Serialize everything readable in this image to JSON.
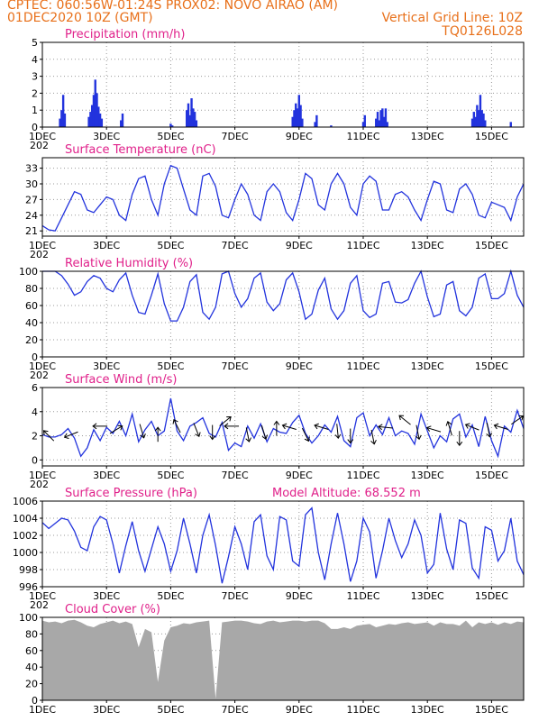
{
  "header": {
    "line1_left": "CPTEC:   060:56W-01:24S   PROX02: NOVO AIRAO (AM)",
    "line2_left": "01DEC2020 10Z (GMT)",
    "line2_right": "Vertical Grid Line: 10Z",
    "line3_right": "TQ0126L028",
    "model_altitude": "Model Altitude: 68.552 m"
  },
  "colors": {
    "header": "#e8701a",
    "title": "#e0208a",
    "line": "#2233dd",
    "cloud": "#a8a8a8"
  },
  "x_axis": {
    "range": [
      1,
      16
    ],
    "labels": [
      "1DEC",
      "3DEC",
      "5DEC",
      "7DEC",
      "9DEC",
      "11DEC",
      "13DEC",
      "15DEC"
    ],
    "label_days": [
      1,
      3,
      5,
      7,
      9,
      11,
      13,
      15
    ],
    "year_stub": "202"
  },
  "chart_data": [
    {
      "type": "bar",
      "title": "Precipitation (mm/h)",
      "ylim": [
        0,
        5
      ],
      "yticks": [
        0,
        1,
        2,
        3,
        4,
        5
      ],
      "x": [
        1.55,
        1.6,
        1.65,
        1.7,
        2.45,
        2.5,
        2.55,
        2.6,
        2.65,
        2.7,
        2.75,
        2.8,
        2.85,
        3.45,
        3.5,
        5.0,
        5.05,
        5.5,
        5.55,
        5.6,
        5.65,
        5.7,
        5.75,
        5.8,
        8.8,
        8.85,
        8.9,
        8.95,
        9.0,
        9.05,
        9.1,
        9.5,
        9.55,
        10.0,
        11.0,
        11.05,
        11.4,
        11.45,
        11.5,
        11.55,
        11.6,
        11.65,
        11.7,
        11.75,
        14.4,
        14.45,
        14.5,
        14.55,
        14.6,
        14.65,
        14.7,
        14.75,
        14.8,
        15.6
      ],
      "values": [
        0.5,
        1.0,
        1.9,
        0.8,
        0.6,
        0.9,
        1.3,
        1.9,
        2.8,
        2.0,
        1.2,
        0.8,
        0.5,
        0.4,
        0.8,
        0.2,
        0.1,
        1.0,
        1.4,
        0.7,
        1.7,
        1.1,
        0.9,
        0.4,
        0.6,
        1.0,
        1.4,
        1.1,
        1.9,
        1.3,
        0.5,
        0.3,
        0.7,
        0.1,
        0.3,
        0.7,
        0.5,
        0.9,
        0.4,
        1.0,
        1.1,
        0.6,
        1.1,
        0.3,
        0.5,
        0.9,
        0.6,
        1.3,
        1.0,
        1.9,
        1.0,
        0.8,
        0.4,
        0.3
      ]
    },
    {
      "type": "line",
      "title": "Surface Temperature (nC)",
      "ylim": [
        20,
        35
      ],
      "yticks": [
        21,
        24,
        27,
        30,
        33
      ],
      "x": [
        1.0,
        1.2,
        1.4,
        1.6,
        1.8,
        2.0,
        2.2,
        2.4,
        2.6,
        2.8,
        3.0,
        3.2,
        3.4,
        3.6,
        3.8,
        4.0,
        4.2,
        4.4,
        4.6,
        4.8,
        5.0,
        5.2,
        5.4,
        5.6,
        5.8,
        6.0,
        6.2,
        6.4,
        6.6,
        6.8,
        7.0,
        7.2,
        7.4,
        7.6,
        7.8,
        8.0,
        8.2,
        8.4,
        8.6,
        8.8,
        9.0,
        9.2,
        9.4,
        9.6,
        9.8,
        10.0,
        10.2,
        10.4,
        10.6,
        10.8,
        11.0,
        11.2,
        11.4,
        11.6,
        11.8,
        12.0,
        12.2,
        12.4,
        12.6,
        12.8,
        13.0,
        13.2,
        13.4,
        13.6,
        13.8,
        14.0,
        14.2,
        14.4,
        14.6,
        14.8,
        15.0,
        15.2,
        15.4,
        15.6,
        15.8,
        16.0
      ],
      "values": [
        22.0,
        21.2,
        21.0,
        23.5,
        26.0,
        28.5,
        28.0,
        25.0,
        24.5,
        26.0,
        27.5,
        27.0,
        24.0,
        23.0,
        28.0,
        31.0,
        31.5,
        27.0,
        24.0,
        30.0,
        33.5,
        33.0,
        29.0,
        25.0,
        24.0,
        31.5,
        32.0,
        29.5,
        24.0,
        23.5,
        27.0,
        30.0,
        28.0,
        24.0,
        23.0,
        28.5,
        30.0,
        28.5,
        24.5,
        23.0,
        27.0,
        32.0,
        31.0,
        26.0,
        25.0,
        30.0,
        32.0,
        30.0,
        25.5,
        24.0,
        30.0,
        31.5,
        30.5,
        25.0,
        25.0,
        28.0,
        28.5,
        27.5,
        25.0,
        23.0,
        27.0,
        30.5,
        30.0,
        25.0,
        24.5,
        29.0,
        30.0,
        28.0,
        24.0,
        23.5,
        26.5,
        26.0,
        25.5,
        23.0,
        27.5,
        30.0
      ]
    },
    {
      "type": "line",
      "title": "Relative Humidity (%)",
      "ylim": [
        0,
        100
      ],
      "yticks": [
        0,
        20,
        40,
        60,
        80,
        100
      ],
      "x": [
        1.0,
        1.2,
        1.4,
        1.6,
        1.8,
        2.0,
        2.2,
        2.4,
        2.6,
        2.8,
        3.0,
        3.2,
        3.4,
        3.6,
        3.8,
        4.0,
        4.2,
        4.4,
        4.6,
        4.8,
        5.0,
        5.2,
        5.4,
        5.6,
        5.8,
        6.0,
        6.2,
        6.4,
        6.6,
        6.8,
        7.0,
        7.2,
        7.4,
        7.6,
        7.8,
        8.0,
        8.2,
        8.4,
        8.6,
        8.8,
        9.0,
        9.2,
        9.4,
        9.6,
        9.8,
        10.0,
        10.2,
        10.4,
        10.6,
        10.8,
        11.0,
        11.2,
        11.4,
        11.6,
        11.8,
        12.0,
        12.2,
        12.4,
        12.6,
        12.8,
        13.0,
        13.2,
        13.4,
        13.6,
        13.8,
        14.0,
        14.2,
        14.4,
        14.6,
        14.8,
        15.0,
        15.2,
        15.4,
        15.6,
        15.8,
        16.0
      ],
      "values": [
        100,
        100,
        100,
        95,
        85,
        72,
        76,
        88,
        95,
        92,
        80,
        76,
        90,
        98,
        72,
        52,
        50,
        72,
        97,
        62,
        42,
        42,
        58,
        88,
        96,
        52,
        44,
        58,
        97,
        100,
        74,
        58,
        68,
        92,
        98,
        64,
        54,
        62,
        90,
        98,
        76,
        44,
        50,
        78,
        92,
        56,
        44,
        54,
        86,
        95,
        54,
        46,
        50,
        86,
        88,
        64,
        63,
        67,
        86,
        100,
        70,
        47,
        50,
        84,
        88,
        54,
        48,
        58,
        92,
        97,
        68,
        68,
        74,
        100,
        72,
        58
      ]
    },
    {
      "type": "line",
      "title": "Surface Wind (m/s)",
      "ylim": [
        -0.5,
        6
      ],
      "yticks": [
        0,
        2,
        4,
        6
      ],
      "x": [
        1.0,
        1.2,
        1.4,
        1.6,
        1.8,
        2.0,
        2.2,
        2.4,
        2.6,
        2.8,
        3.0,
        3.2,
        3.4,
        3.6,
        3.8,
        4.0,
        4.2,
        4.4,
        4.6,
        4.8,
        5.0,
        5.2,
        5.4,
        5.6,
        5.8,
        6.0,
        6.2,
        6.4,
        6.6,
        6.8,
        7.0,
        7.2,
        7.4,
        7.6,
        7.8,
        8.0,
        8.2,
        8.4,
        8.6,
        8.8,
        9.0,
        9.2,
        9.4,
        9.6,
        9.8,
        10.0,
        10.2,
        10.4,
        10.6,
        10.8,
        11.0,
        11.2,
        11.4,
        11.6,
        11.8,
        12.0,
        12.2,
        12.4,
        12.6,
        12.8,
        13.0,
        13.2,
        13.4,
        13.6,
        13.8,
        14.0,
        14.2,
        14.4,
        14.6,
        14.8,
        15.0,
        15.2,
        15.4,
        15.6,
        15.8,
        16.0
      ],
      "values": [
        2.1,
        1.9,
        1.9,
        2.1,
        2.6,
        1.8,
        0.3,
        1.0,
        2.5,
        1.6,
        2.7,
        2.2,
        3.2,
        2.0,
        3.8,
        1.5,
        2.5,
        3.2,
        2.0,
        2.4,
        5.1,
        2.4,
        1.6,
        2.8,
        3.1,
        3.5,
        2.2,
        1.9,
        3.1,
        0.8,
        1.4,
        1.1,
        2.8,
        1.8,
        3.0,
        1.5,
        2.6,
        2.3,
        2.2,
        3.1,
        3.7,
        2.2,
        1.4,
        2.0,
        2.9,
        2.3,
        3.6,
        1.6,
        1.1,
        3.5,
        3.9,
        2.0,
        2.9,
        2.1,
        3.5,
        2.0,
        2.4,
        2.2,
        1.3,
        3.8,
        2.4,
        1.0,
        2.0,
        1.5,
        3.4,
        3.8,
        1.9,
        2.9,
        1.1,
        3.6,
        1.6,
        0.3,
        2.8,
        2.3,
        4.1,
        2.6
      ],
      "arrows": [
        {
          "x": 1.2,
          "y": 2.0,
          "dx": -1,
          "dy": 1
        },
        {
          "x": 1.9,
          "y": 2.1,
          "dx": -1,
          "dy": -0.4
        },
        {
          "x": 2.8,
          "y": 2.8,
          "dx": -1,
          "dy": 0
        },
        {
          "x": 3.3,
          "y": 2.5,
          "dx": 1,
          "dy": 0.6
        },
        {
          "x": 4.1,
          "y": 2.4,
          "dx": 0.3,
          "dy": -1
        },
        {
          "x": 4.6,
          "y": 2.1,
          "dx": 0,
          "dy": 1
        },
        {
          "x": 5.2,
          "y": 2.8,
          "dx": -0.5,
          "dy": 1
        },
        {
          "x": 5.8,
          "y": 2.5,
          "dx": 0.4,
          "dy": -1
        },
        {
          "x": 6.3,
          "y": 2.3,
          "dx": 0,
          "dy": -1
        },
        {
          "x": 6.7,
          "y": 3.2,
          "dx": 1,
          "dy": 0.8
        },
        {
          "x": 6.9,
          "y": 2.8,
          "dx": -1,
          "dy": 0
        },
        {
          "x": 7.4,
          "y": 2.1,
          "dx": 0.2,
          "dy": -1
        },
        {
          "x": 7.9,
          "y": 2.3,
          "dx": 0.3,
          "dy": -1
        },
        {
          "x": 8.3,
          "y": 2.6,
          "dx": 0,
          "dy": 1
        },
        {
          "x": 8.7,
          "y": 2.7,
          "dx": -1,
          "dy": 0.3
        },
        {
          "x": 9.2,
          "y": 2.1,
          "dx": 0.5,
          "dy": -1
        },
        {
          "x": 9.7,
          "y": 2.7,
          "dx": -1,
          "dy": 0.3
        },
        {
          "x": 10.2,
          "y": 2.4,
          "dx": 0.1,
          "dy": -1
        },
        {
          "x": 10.6,
          "y": 2.0,
          "dx": 0,
          "dy": -1
        },
        {
          "x": 11.3,
          "y": 1.9,
          "dx": 0.2,
          "dy": -1
        },
        {
          "x": 11.7,
          "y": 2.7,
          "dx": -1,
          "dy": 0.1
        },
        {
          "x": 12.3,
          "y": 3.3,
          "dx": -1,
          "dy": 0.8
        },
        {
          "x": 12.7,
          "y": 2.3,
          "dx": 0.2,
          "dy": -1
        },
        {
          "x": 13.2,
          "y": 2.5,
          "dx": -1,
          "dy": 0.3
        },
        {
          "x": 13.7,
          "y": 2.6,
          "dx": -0.3,
          "dy": 1
        },
        {
          "x": 14.0,
          "y": 1.8,
          "dx": 0,
          "dy": -1
        },
        {
          "x": 14.4,
          "y": 2.7,
          "dx": -1,
          "dy": 0.4
        },
        {
          "x": 14.9,
          "y": 2.5,
          "dx": 0.2,
          "dy": -1
        },
        {
          "x": 15.3,
          "y": 2.7,
          "dx": -1,
          "dy": 0.3
        },
        {
          "x": 15.8,
          "y": 3.3,
          "dx": 1,
          "dy": 0.7
        }
      ]
    },
    {
      "type": "line",
      "title": "Surface Pressure (hPa)",
      "ylim": [
        996,
        1006
      ],
      "yticks": [
        996,
        998,
        1000,
        1002,
        1004,
        1006
      ],
      "x": [
        1.0,
        1.2,
        1.4,
        1.6,
        1.8,
        2.0,
        2.2,
        2.4,
        2.6,
        2.8,
        3.0,
        3.2,
        3.4,
        3.6,
        3.8,
        4.0,
        4.2,
        4.4,
        4.6,
        4.8,
        5.0,
        5.2,
        5.4,
        5.6,
        5.8,
        6.0,
        6.2,
        6.4,
        6.6,
        6.8,
        7.0,
        7.2,
        7.4,
        7.6,
        7.8,
        8.0,
        8.2,
        8.4,
        8.6,
        8.8,
        9.0,
        9.2,
        9.4,
        9.6,
        9.8,
        10.0,
        10.2,
        10.4,
        10.6,
        10.8,
        11.0,
        11.2,
        11.4,
        11.6,
        11.8,
        12.0,
        12.2,
        12.4,
        12.6,
        12.8,
        13.0,
        13.2,
        13.4,
        13.6,
        13.8,
        14.0,
        14.2,
        14.4,
        14.6,
        14.8,
        15.0,
        15.2,
        15.4,
        15.6,
        15.8,
        16.0
      ],
      "values": [
        1003.5,
        1002.8,
        1003.4,
        1004.0,
        1003.8,
        1002.5,
        1000.6,
        1000.2,
        1003.0,
        1004.2,
        1003.8,
        1001.0,
        997.6,
        1000.8,
        1003.6,
        1000.2,
        997.8,
        1000.4,
        1003.0,
        1001.0,
        997.8,
        1000.2,
        1004.0,
        1001.0,
        997.6,
        1002.0,
        1004.4,
        1000.8,
        996.4,
        999.5,
        1003.0,
        1001.0,
        998.0,
        1003.6,
        1004.4,
        999.6,
        998.0,
        1004.2,
        1003.8,
        999.0,
        998.4,
        1004.4,
        1005.2,
        1000.0,
        996.8,
        1001.0,
        1004.6,
        1001.0,
        996.6,
        999.0,
        1004.0,
        1002.4,
        997.0,
        1000.2,
        1004.0,
        1001.4,
        999.4,
        1001.0,
        1003.8,
        1002.0,
        997.6,
        998.6,
        1004.6,
        1000.4,
        998.0,
        1003.8,
        1003.4,
        998.2,
        997.0,
        1003.0,
        1002.6,
        999.0,
        1000.2,
        1004.0,
        999.0,
        997.4
      ]
    },
    {
      "type": "area",
      "title": "Cloud Cover (%)",
      "ylim": [
        0,
        100
      ],
      "yticks": [
        0,
        20,
        40,
        60,
        80,
        100
      ],
      "x": [
        1.0,
        1.2,
        1.4,
        1.6,
        1.8,
        2.0,
        2.2,
        2.4,
        2.6,
        2.8,
        3.0,
        3.2,
        3.4,
        3.6,
        3.8,
        4.0,
        4.2,
        4.4,
        4.6,
        4.8,
        5.0,
        5.2,
        5.4,
        5.6,
        5.8,
        6.0,
        6.2,
        6.4,
        6.6,
        6.8,
        7.0,
        7.2,
        7.4,
        7.6,
        7.8,
        8.0,
        8.2,
        8.4,
        8.6,
        8.8,
        9.0,
        9.2,
        9.4,
        9.6,
        9.8,
        10.0,
        10.2,
        10.4,
        10.6,
        10.8,
        11.0,
        11.2,
        11.4,
        11.6,
        11.8,
        12.0,
        12.2,
        12.4,
        12.6,
        12.8,
        13.0,
        13.2,
        13.4,
        13.6,
        13.8,
        14.0,
        14.2,
        14.4,
        14.6,
        14.8,
        15.0,
        15.2,
        15.4,
        15.6,
        15.8,
        16.0
      ],
      "values": [
        96,
        94,
        95,
        93,
        96,
        97,
        94,
        90,
        88,
        92,
        94,
        96,
        93,
        95,
        92,
        64,
        86,
        82,
        22,
        72,
        88,
        90,
        93,
        92,
        94,
        95,
        96,
        2,
        94,
        95,
        96,
        96,
        95,
        93,
        92,
        95,
        96,
        94,
        95,
        96,
        96,
        95,
        96,
        96,
        93,
        86,
        86,
        88,
        86,
        90,
        91,
        92,
        88,
        90,
        92,
        91,
        93,
        94,
        92,
        93,
        94,
        90,
        94,
        92,
        92,
        90,
        96,
        88,
        94,
        92,
        94,
        91,
        94,
        92,
        95,
        94
      ]
    }
  ]
}
